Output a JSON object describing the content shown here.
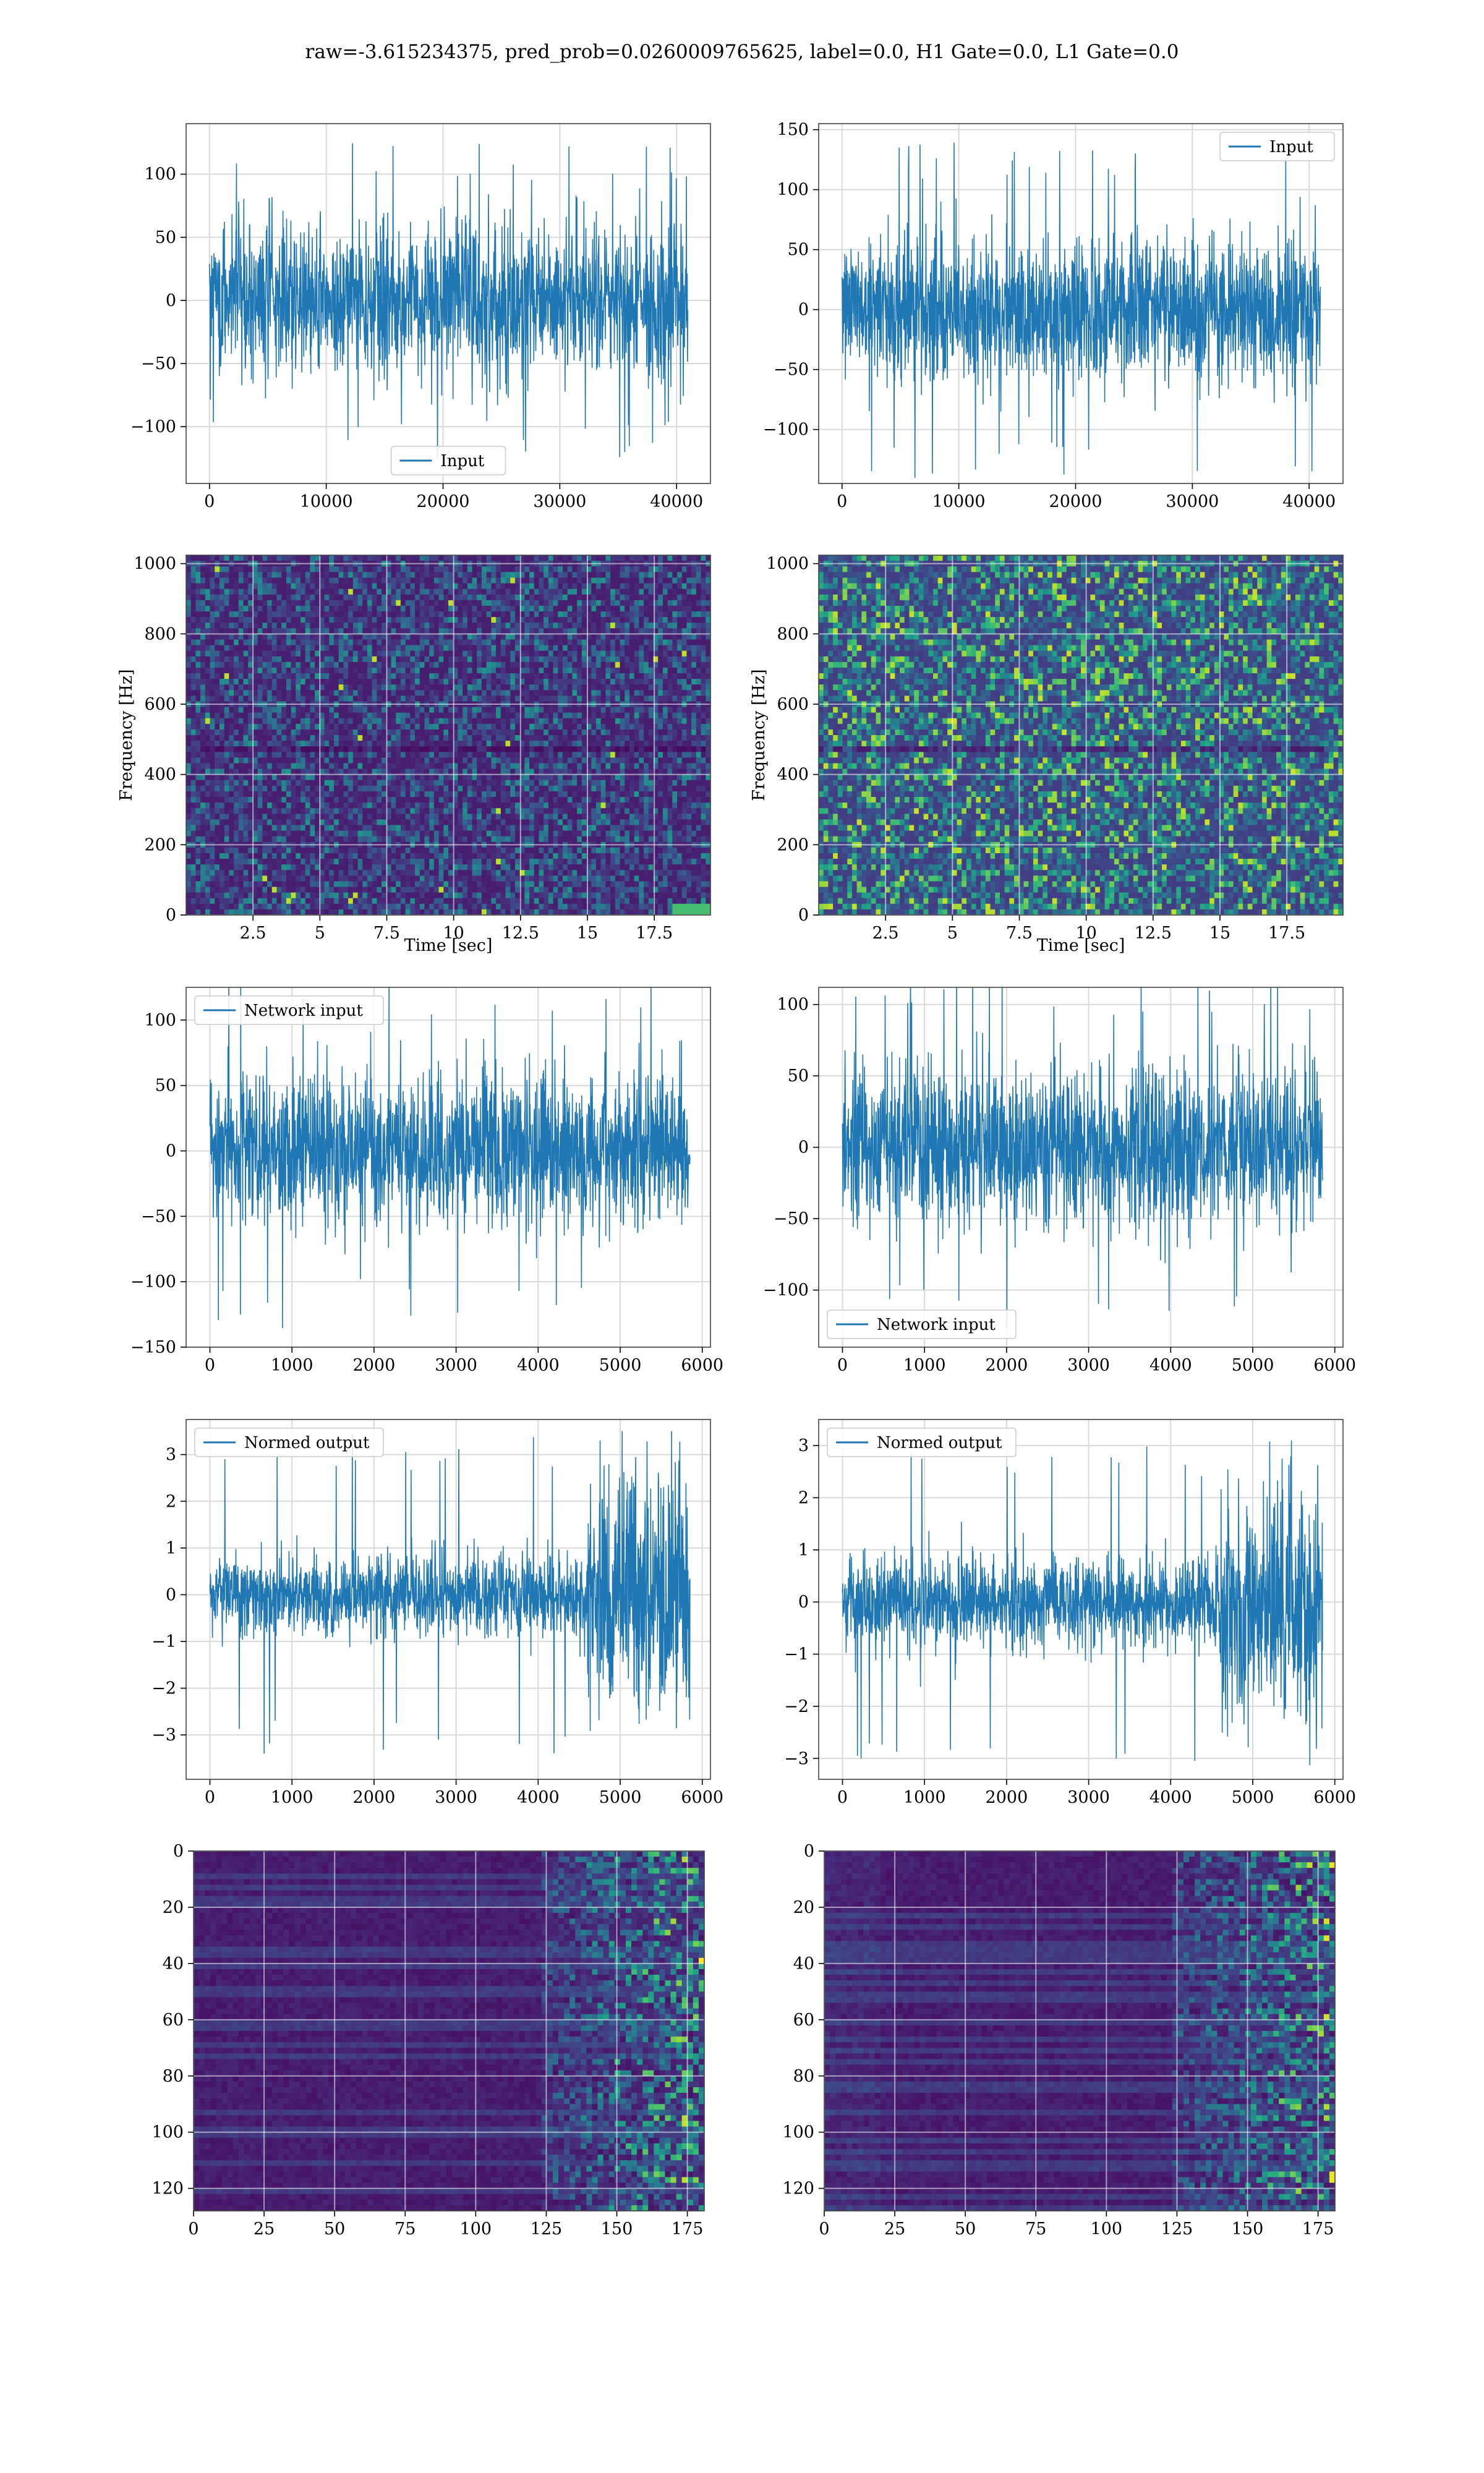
{
  "figure": {
    "title": "raw=-3.615234375, pred_prob=0.0260009765625, label=0.0, H1 Gate=0.0, L1 Gate=0.0"
  },
  "colors": {
    "line": "#1f77b4",
    "grid": "#d9d9d9",
    "viridis_low": "#440154",
    "viridis_mid": "#21918c",
    "viridis_high": "#fde725"
  },
  "chart_data": [
    {
      "id": "input-left",
      "type": "line",
      "panel": "row1-left",
      "legend": "Input",
      "legend_loc": "lower center",
      "xlim": [
        -2000,
        42900
      ],
      "ylim": [
        -145,
        140
      ],
      "xticks": [
        0,
        10000,
        20000,
        30000,
        40000
      ],
      "yticks": [
        -100,
        -50,
        0,
        50,
        100
      ],
      "x_range": [
        0,
        40960
      ],
      "amplitude": 30,
      "peak": 125
    },
    {
      "id": "input-right",
      "type": "line",
      "panel": "row1-right",
      "legend": "Input",
      "legend_loc": "upper right",
      "xlim": [
        -2000,
        42900
      ],
      "ylim": [
        -145,
        155
      ],
      "xticks": [
        0,
        10000,
        20000,
        30000,
        40000
      ],
      "yticks": [
        -100,
        -50,
        0,
        50,
        100,
        150
      ],
      "x_range": [
        0,
        40960
      ],
      "amplitude": 30,
      "peak": 145
    },
    {
      "id": "spectrogram-left",
      "type": "heatmap",
      "panel": "row2-left",
      "xlabel": "Time [sec]",
      "ylabel": "Frequency [Hz]",
      "xlim": [
        0,
        19.6
      ],
      "ylim": [
        0,
        1024
      ],
      "xticks": [
        2.5,
        5.0,
        7.5,
        10.0,
        12.5,
        15.0,
        17.5
      ],
      "yticks": [
        0,
        200,
        400,
        600,
        800,
        1000
      ],
      "colormap": "viridis"
    },
    {
      "id": "spectrogram-right",
      "type": "heatmap",
      "panel": "row2-right",
      "xlabel": "Time [sec]",
      "ylabel": "Frequency [Hz]",
      "xlim": [
        0,
        19.6
      ],
      "ylim": [
        0,
        1024
      ],
      "xticks": [
        2.5,
        5.0,
        7.5,
        10.0,
        12.5,
        15.0,
        17.5
      ],
      "yticks": [
        0,
        200,
        400,
        600,
        800,
        1000
      ],
      "colormap": "viridis"
    },
    {
      "id": "network-input-left",
      "type": "line",
      "panel": "row3-left",
      "legend": "Network input",
      "legend_loc": "upper left",
      "xlim": [
        -290,
        6100
      ],
      "ylim": [
        -150,
        125
      ],
      "xticks": [
        0,
        1000,
        2000,
        3000,
        4000,
        5000,
        6000
      ],
      "yticks": [
        -150,
        -100,
        -50,
        0,
        50,
        100
      ],
      "x_range": [
        0,
        5850
      ],
      "amplitude": 28,
      "peak": 138
    },
    {
      "id": "network-input-right",
      "type": "line",
      "panel": "row3-right",
      "legend": "Network input",
      "legend_loc": "lower left",
      "xlim": [
        -290,
        6100
      ],
      "ylim": [
        -140,
        112
      ],
      "xticks": [
        0,
        1000,
        2000,
        3000,
        4000,
        5000,
        6000
      ],
      "yticks": [
        -100,
        -50,
        0,
        50,
        100
      ],
      "x_range": [
        0,
        5850
      ],
      "amplitude": 28,
      "peak": 126
    },
    {
      "id": "normed-output-left",
      "type": "line",
      "panel": "row4-left",
      "legend": "Normed output",
      "legend_loc": "upper left",
      "xlim": [
        -290,
        6100
      ],
      "ylim": [
        -3.95,
        3.75
      ],
      "xticks": [
        0,
        1000,
        2000,
        3000,
        4000,
        5000,
        6000
      ],
      "yticks": [
        -3,
        -2,
        -1,
        0,
        1,
        2,
        3
      ],
      "x_range": [
        0,
        5850
      ],
      "amplitude": 0.42,
      "burst_start": 4600,
      "burst_amplitude": 1.35,
      "peak": 3.5
    },
    {
      "id": "normed-output-right",
      "type": "line",
      "panel": "row4-right",
      "legend": "Normed output",
      "legend_loc": "upper left",
      "xlim": [
        -290,
        6100
      ],
      "ylim": [
        -3.4,
        3.5
      ],
      "xticks": [
        0,
        1000,
        2000,
        3000,
        4000,
        5000,
        6000
      ],
      "yticks": [
        -3,
        -2,
        -1,
        0,
        1,
        2,
        3
      ],
      "x_range": [
        0,
        5850
      ],
      "amplitude": 0.42,
      "burst_start": 4600,
      "burst_amplitude": 1.1,
      "peak": 3.2
    },
    {
      "id": "feature-map-left",
      "type": "heatmap",
      "panel": "row5-left",
      "xlim": [
        0,
        181
      ],
      "ylim": [
        128,
        0
      ],
      "xticks": [
        0,
        25,
        50,
        75,
        100,
        125,
        150,
        175
      ],
      "yticks": [
        0,
        20,
        40,
        60,
        80,
        100,
        120
      ],
      "colormap": "viridis"
    },
    {
      "id": "feature-map-right",
      "type": "heatmap",
      "panel": "row5-right",
      "xlim": [
        0,
        181
      ],
      "ylim": [
        128,
        0
      ],
      "xticks": [
        0,
        25,
        50,
        75,
        100,
        125,
        150,
        175
      ],
      "yticks": [
        0,
        20,
        40,
        60,
        80,
        100,
        120
      ],
      "colormap": "viridis"
    }
  ]
}
